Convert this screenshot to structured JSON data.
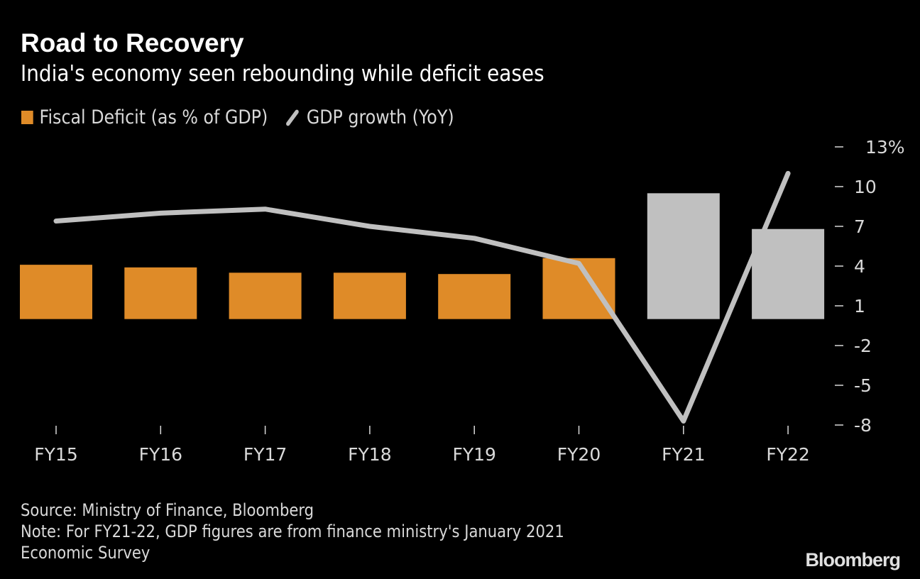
{
  "header": {
    "title": "Road to Recovery",
    "subtitle": "India's economy seen rebounding while deficit eases"
  },
  "legend": {
    "items": [
      {
        "label": "Fiscal Deficit (as % of GDP)",
        "icon": "bar-swatch",
        "color": "#df8b28"
      },
      {
        "label": "GDP growth (YoY)",
        "icon": "line-swatch",
        "color": "#c0c0c0"
      }
    ]
  },
  "chart_data": {
    "type": "bar",
    "title": "Road to Recovery",
    "subtitle": "India's economy seen rebounding while deficit eases",
    "categories": [
      "FY15",
      "FY16",
      "FY17",
      "FY18",
      "FY19",
      "FY20",
      "FY21",
      "FY22"
    ],
    "series": [
      {
        "name": "Fiscal Deficit (as % of GDP)",
        "type": "bar",
        "values": [
          4.1,
          3.9,
          3.5,
          3.5,
          3.4,
          4.6,
          9.5,
          6.8
        ],
        "colors": [
          "#df8b28",
          "#df8b28",
          "#df8b28",
          "#df8b28",
          "#df8b28",
          "#df8b28",
          "#c0c0c0",
          "#c0c0c0"
        ]
      },
      {
        "name": "GDP growth (YoY)",
        "type": "line",
        "values": [
          7.4,
          8.0,
          8.3,
          7.0,
          6.1,
          4.2,
          -7.7,
          11.0
        ],
        "color": "#c0c0c0"
      }
    ],
    "yaxis": {
      "position": "right",
      "ticks": [
        13,
        10,
        7,
        4,
        1,
        -2,
        -5,
        -8
      ],
      "tick_labels": [
        "13%",
        "10",
        "7",
        "4",
        "1",
        "-2",
        "-5",
        "-8"
      ],
      "ylim": [
        -8,
        13
      ]
    },
    "xlabel": "",
    "ylabel": "",
    "grid": false,
    "legend_position": "top-left"
  },
  "footer": {
    "source": "Source: Ministry of Finance, Bloomberg",
    "note_line1": "Note: For FY21-22, GDP figures are from finance ministry's January 2021",
    "note_line2": "Economic Survey",
    "brand": "Bloomberg"
  }
}
